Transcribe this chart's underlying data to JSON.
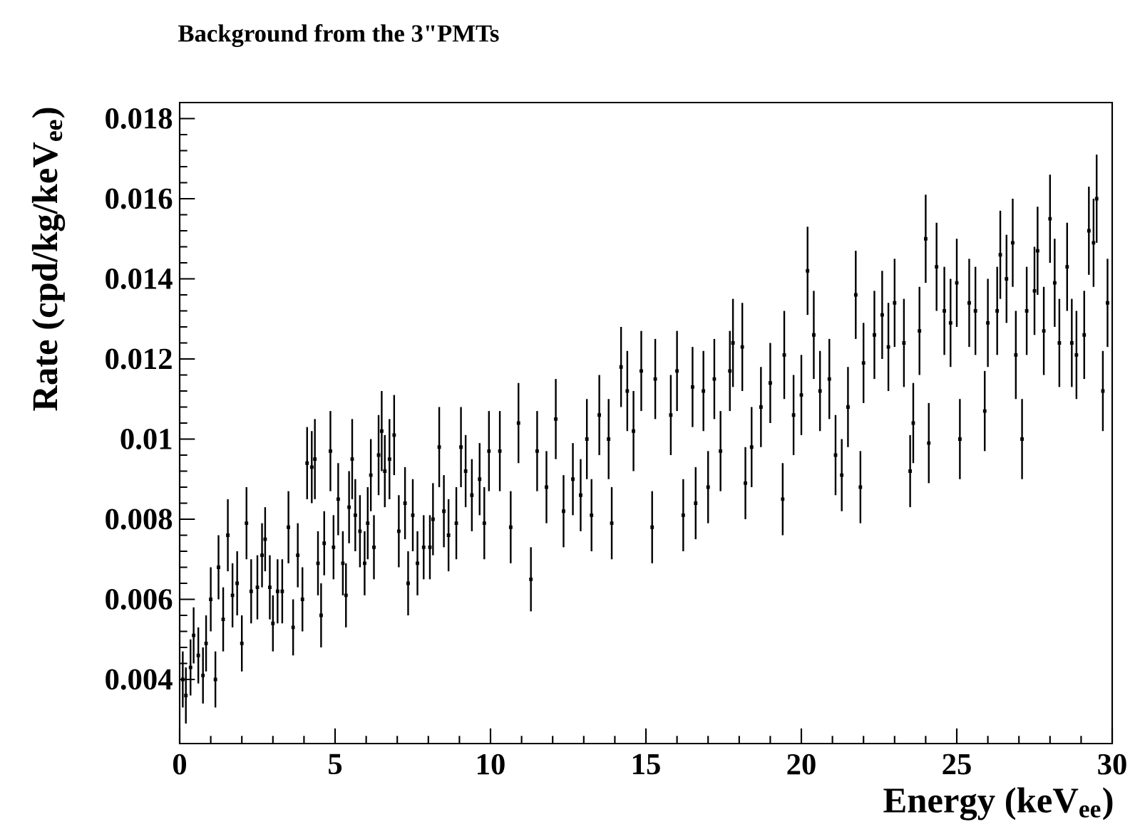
{
  "chart_data": {
    "type": "scatter",
    "title": "Background from the 3\"PMTs",
    "xlabel": "Energy (keV$_{ee}$)",
    "ylabel": "Rate (cpd/kg/keV$_{ee}$)",
    "xlim": [
      0,
      30
    ],
    "xticks": [
      0,
      5,
      10,
      15,
      20,
      25,
      30
    ],
    "ylim": [
      0.0024,
      0.0184
    ],
    "yticks": [
      0.004,
      0.006,
      0.008,
      0.01,
      0.012,
      0.014,
      0.016,
      0.018
    ],
    "marker": "square",
    "series": [
      {
        "color": "#000000",
        "x": [
          0.1,
          0.2,
          0.35,
          0.45,
          0.6,
          0.75,
          0.85,
          1.0,
          1.15,
          1.25,
          1.4,
          1.55,
          1.7,
          1.85,
          2.0,
          2.15,
          2.3,
          2.5,
          2.65,
          2.75,
          2.9,
          3.0,
          3.15,
          3.3,
          3.5,
          3.65,
          3.8,
          3.95,
          4.1,
          4.25,
          4.35,
          4.45,
          4.55,
          4.65,
          4.85,
          4.95,
          5.1,
          5.25,
          5.35,
          5.45,
          5.55,
          5.65,
          5.8,
          5.95,
          6.05,
          6.15,
          6.25,
          6.4,
          6.5,
          6.6,
          6.75,
          6.9,
          7.05,
          7.25,
          7.35,
          7.5,
          7.65,
          7.85,
          8.05,
          8.15,
          8.35,
          8.5,
          8.65,
          8.9,
          9.05,
          9.2,
          9.4,
          9.65,
          9.8,
          9.95,
          10.3,
          10.65,
          10.9,
          11.3,
          11.5,
          11.8,
          12.1,
          12.35,
          12.65,
          12.9,
          13.1,
          13.25,
          13.5,
          13.8,
          13.9,
          14.2,
          14.4,
          14.6,
          14.85,
          15.2,
          15.3,
          15.8,
          16.0,
          16.2,
          16.5,
          16.6,
          16.85,
          17.0,
          17.2,
          17.4,
          17.7,
          17.8,
          18.1,
          18.2,
          18.4,
          18.7,
          19.0,
          19.4,
          19.45,
          19.75,
          20.0,
          20.2,
          20.4,
          20.6,
          20.9,
          21.1,
          21.3,
          21.5,
          21.75,
          21.9,
          22.0,
          22.35,
          22.6,
          22.8,
          23.0,
          23.3,
          23.5,
          23.6,
          23.8,
          24.0,
          24.1,
          24.35,
          24.6,
          24.8,
          25.0,
          25.1,
          25.4,
          25.6,
          25.9,
          26.0,
          26.3,
          26.4,
          26.6,
          26.8,
          26.9,
          27.1,
          27.25,
          27.5,
          27.6,
          27.8,
          28.0,
          28.15,
          28.3,
          28.55,
          28.7,
          28.85,
          29.1,
          29.25,
          29.4,
          29.5,
          29.7,
          29.85
        ],
        "values": [
          0.004,
          0.0036,
          0.0043,
          0.0051,
          0.0046,
          0.0041,
          0.0049,
          0.006,
          0.004,
          0.0068,
          0.0055,
          0.0076,
          0.0061,
          0.0064,
          0.0049,
          0.0079,
          0.0062,
          0.0063,
          0.0071,
          0.0075,
          0.0063,
          0.0054,
          0.0062,
          0.0062,
          0.0078,
          0.0053,
          0.0071,
          0.006,
          0.0094,
          0.0093,
          0.0095,
          0.0069,
          0.0056,
          0.0074,
          0.0097,
          0.0073,
          0.0085,
          0.0069,
          0.0061,
          0.0083,
          0.0095,
          0.0081,
          0.0077,
          0.0069,
          0.0079,
          0.0091,
          0.0073,
          0.0096,
          0.0102,
          0.0092,
          0.0095,
          0.0101,
          0.0077,
          0.0084,
          0.0064,
          0.0081,
          0.0069,
          0.0073,
          0.0073,
          0.008,
          0.0098,
          0.0082,
          0.0076,
          0.0079,
          0.0098,
          0.0092,
          0.0086,
          0.009,
          0.0079,
          0.0097,
          0.0097,
          0.0078,
          0.0104,
          0.0065,
          0.0097,
          0.0088,
          0.0105,
          0.0082,
          0.009,
          0.0086,
          0.01,
          0.0081,
          0.0106,
          0.01,
          0.0079,
          0.0118,
          0.0112,
          0.0102,
          0.0117,
          0.0078,
          0.0115,
          0.0106,
          0.0117,
          0.0081,
          0.0113,
          0.0084,
          0.0112,
          0.0088,
          0.0115,
          0.0097,
          0.0117,
          0.0124,
          0.0123,
          0.0089,
          0.0098,
          0.0108,
          0.0114,
          0.0085,
          0.0121,
          0.0106,
          0.0111,
          0.0142,
          0.0126,
          0.0112,
          0.0115,
          0.0096,
          0.0091,
          0.0108,
          0.0136,
          0.0088,
          0.0119,
          0.0126,
          0.0131,
          0.0123,
          0.0134,
          0.0124,
          0.0092,
          0.0104,
          0.0127,
          0.015,
          0.0099,
          0.0143,
          0.0132,
          0.0129,
          0.0139,
          0.01,
          0.0134,
          0.0132,
          0.0107,
          0.0129,
          0.0132,
          0.0146,
          0.014,
          0.0149,
          0.0121,
          0.01,
          0.0132,
          0.0137,
          0.0147,
          0.0127,
          0.0155,
          0.0139,
          0.0124,
          0.0143,
          0.0124,
          0.0121,
          0.0126,
          0.0152,
          0.0149,
          0.016,
          0.0112,
          0.0134
        ],
        "errors": [
          0.0007,
          0.0007,
          0.0007,
          0.0007,
          0.0007,
          0.0007,
          0.0007,
          0.0008,
          0.0007,
          0.0008,
          0.0008,
          0.0009,
          0.0008,
          0.0008,
          0.0007,
          0.0009,
          0.0008,
          0.0008,
          0.0008,
          0.0008,
          0.0008,
          0.0007,
          0.0008,
          0.0008,
          0.0009,
          0.0007,
          0.0008,
          0.0008,
          0.0009,
          0.0009,
          0.001,
          0.0008,
          0.0008,
          0.0008,
          0.001,
          0.0008,
          0.0009,
          0.0008,
          0.0008,
          0.0009,
          0.001,
          0.0009,
          0.0009,
          0.0008,
          0.0009,
          0.0009,
          0.0008,
          0.001,
          0.001,
          0.0009,
          0.001,
          0.001,
          0.0009,
          0.0009,
          0.0008,
          0.0009,
          0.0008,
          0.0008,
          0.0008,
          0.0009,
          0.001,
          0.0009,
          0.0009,
          0.0009,
          0.001,
          0.0009,
          0.0009,
          0.0009,
          0.0009,
          0.001,
          0.001,
          0.0009,
          0.001,
          0.0008,
          0.001,
          0.0009,
          0.001,
          0.0009,
          0.0009,
          0.0009,
          0.001,
          0.0009,
          0.001,
          0.001,
          0.0009,
          0.001,
          0.001,
          0.001,
          0.001,
          0.0009,
          0.001,
          0.001,
          0.001,
          0.0009,
          0.001,
          0.0009,
          0.001,
          0.0009,
          0.001,
          0.001,
          0.001,
          0.0011,
          0.0011,
          0.0009,
          0.001,
          0.001,
          0.001,
          0.0009,
          0.0011,
          0.001,
          0.001,
          0.0011,
          0.0011,
          0.001,
          0.001,
          0.001,
          0.0009,
          0.001,
          0.0011,
          0.0009,
          0.001,
          0.0011,
          0.0011,
          0.0011,
          0.0011,
          0.0011,
          0.0009,
          0.001,
          0.0011,
          0.0011,
          0.001,
          0.0011,
          0.0011,
          0.0011,
          0.0011,
          0.001,
          0.0011,
          0.0011,
          0.001,
          0.0011,
          0.0011,
          0.0011,
          0.0011,
          0.0011,
          0.0011,
          0.001,
          0.0011,
          0.0011,
          0.0011,
          0.0011,
          0.0011,
          0.0011,
          0.0011,
          0.0011,
          0.0011,
          0.0011,
          0.0011,
          0.0011,
          0.0011,
          0.0011,
          0.001,
          0.0011
        ]
      }
    ]
  }
}
